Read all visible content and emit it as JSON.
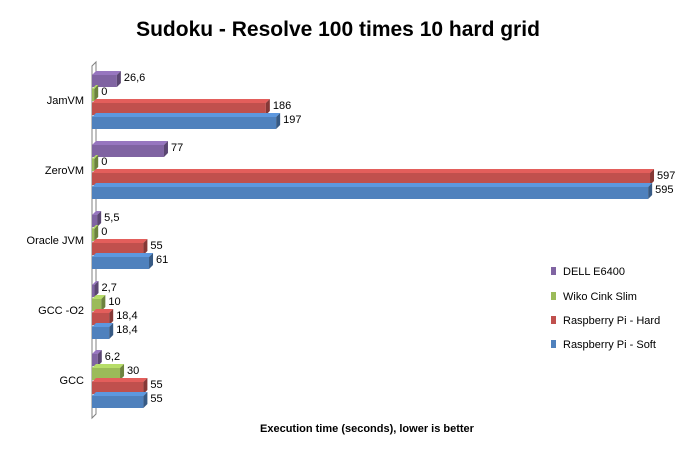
{
  "chart_data": {
    "type": "bar",
    "orientation": "horizontal",
    "three_d": true,
    "title": "Sudoku - Resolve 100 times 10 hard grid",
    "xlabel": "Execution time (seconds), lower is better",
    "ylabel": "",
    "xlim": [
      0,
      600
    ],
    "grid": false,
    "legend_position": "right",
    "categories": [
      "JamVM",
      "ZeroVM",
      "Oracle JVM",
      "GCC -O2",
      "GCC"
    ],
    "series": [
      {
        "name": "DELL E6400",
        "color": "#8064A2",
        "values": [
          26.6,
          77,
          5.5,
          2.7,
          6.2
        ],
        "labels": [
          "26,6",
          "77",
          "5,5",
          "2,7",
          "6,2"
        ]
      },
      {
        "name": "Wiko Cink Slim",
        "color": "#9BBB59",
        "values": [
          0,
          0,
          0,
          10,
          30
        ],
        "labels": [
          "0",
          "0",
          "0",
          "10",
          "30"
        ]
      },
      {
        "name": "Raspberry Pi - Hard",
        "color": "#C0504D",
        "values": [
          186,
          597,
          55,
          18.4,
          55
        ],
        "labels": [
          "186",
          "597",
          "55",
          "18,4",
          "55"
        ]
      },
      {
        "name": "Raspberry Pi - Soft",
        "color": "#4F81BD",
        "values": [
          197,
          595,
          61,
          18.4,
          55
        ],
        "labels": [
          "197",
          "595",
          "61",
          "18,4",
          "55"
        ]
      }
    ],
    "legend_order": [
      "DELL E6400",
      "Wiko Cink Slim",
      "Raspberry Pi - Hard",
      "Raspberry Pi - Soft"
    ]
  }
}
